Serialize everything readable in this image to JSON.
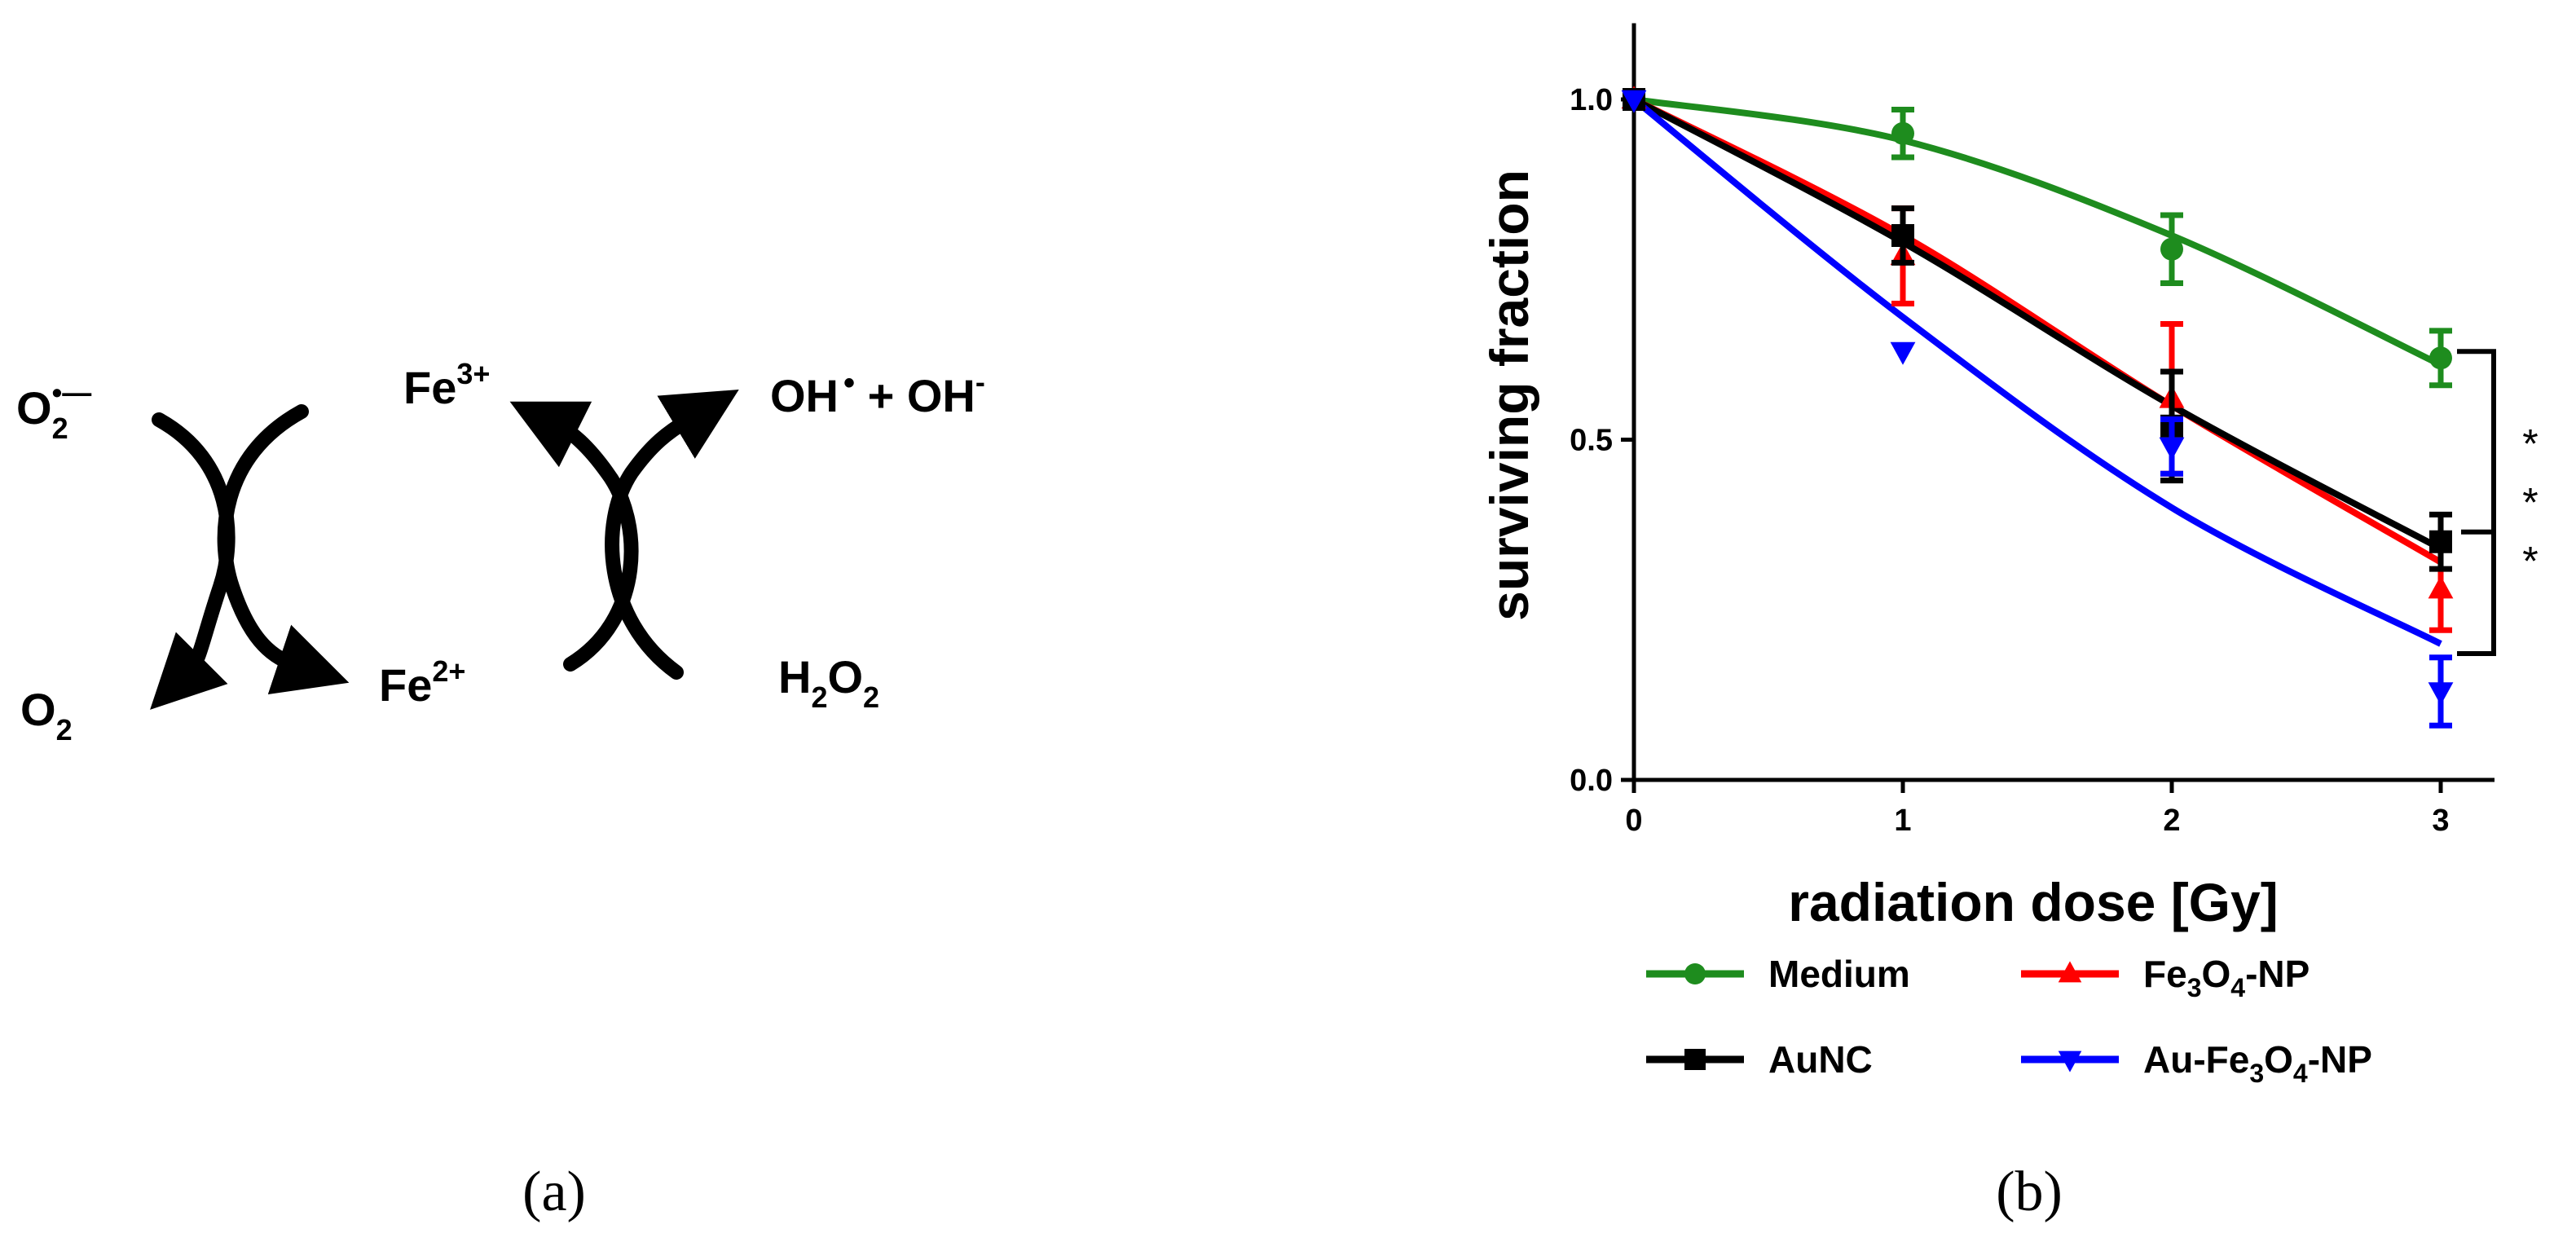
{
  "panel_a": {
    "label": "(a)",
    "species": {
      "superoxide": "O",
      "superoxide_sub": "2",
      "superoxide_sup": "•—",
      "oxygen": "O",
      "oxygen_sub": "2",
      "fe3": "Fe",
      "fe3_sup": "3+",
      "fe2": "Fe",
      "fe2_sup": "2+",
      "hydroxyl": "OH",
      "hydroxyl_sup": "•",
      "plus": " + ",
      "hydroxide": "OH",
      "hydroxide_sup": "-",
      "peroxide_h": "H",
      "peroxide_h_sub": "2",
      "peroxide_o": "O",
      "peroxide_o_sub": "2"
    }
  },
  "panel_b": {
    "label": "(b)"
  },
  "chart_data": {
    "type": "line",
    "xlabel": "radiation dose [Gy]",
    "ylabel": "surviving fraction",
    "xlim": [
      0,
      3.2
    ],
    "ylim": [
      0,
      1.1
    ],
    "xticks": [
      "0",
      "1",
      "2",
      "3"
    ],
    "yticks": [
      "0.0",
      "0.5",
      "1.0"
    ],
    "x": [
      0,
      1,
      2,
      3
    ],
    "series": [
      {
        "name": "Medium",
        "color": "#1e8c1e",
        "marker": "circle",
        "values": [
          1.0,
          0.95,
          0.78,
          0.62
        ],
        "err": [
          0,
          0.035,
          0.05,
          0.04
        ],
        "fit": [
          1.0,
          0.94,
          0.8,
          0.61
        ]
      },
      {
        "name": "AuNC",
        "color": "#ff0000",
        "marker": "triangle-up",
        "values": [
          1.0,
          0.77,
          0.56,
          0.28
        ],
        "err": [
          0,
          0.07,
          0.11,
          0.06
        ],
        "fit": [
          1.0,
          0.8,
          0.55,
          0.32
        ]
      },
      {
        "name": "Fe3O4-NP",
        "color": "#000000",
        "marker": "square",
        "values": [
          1.0,
          0.8,
          0.52,
          0.35
        ],
        "err": [
          0,
          0.04,
          0.08,
          0.04
        ],
        "fit": [
          1.0,
          0.79,
          0.55,
          0.34
        ]
      },
      {
        "name": "Au-Fe3O4-NP",
        "color": "#0000ff",
        "marker": "triangle-down",
        "values": [
          1.0,
          0.63,
          0.49,
          0.13
        ],
        "err": [
          0,
          0,
          0.04,
          0.05
        ],
        "fit": [
          1.0,
          0.68,
          0.4,
          0.2
        ]
      }
    ],
    "significance": {
      "text": "***",
      "between": [
        "Medium",
        "Au-Fe3O4-NP"
      ]
    },
    "legend": {
      "placement": "bottom",
      "columns": 2
    },
    "legend_labels": [
      {
        "main": "Medium"
      },
      {
        "main": "Fe",
        "s1": "3",
        "m2": "O",
        "s2": "4",
        "tail": "-NP"
      },
      {
        "main": "AuNC"
      },
      {
        "main": "Au-Fe",
        "s1": "3",
        "m2": "O",
        "s2": "4",
        "tail": "-NP"
      }
    ]
  }
}
